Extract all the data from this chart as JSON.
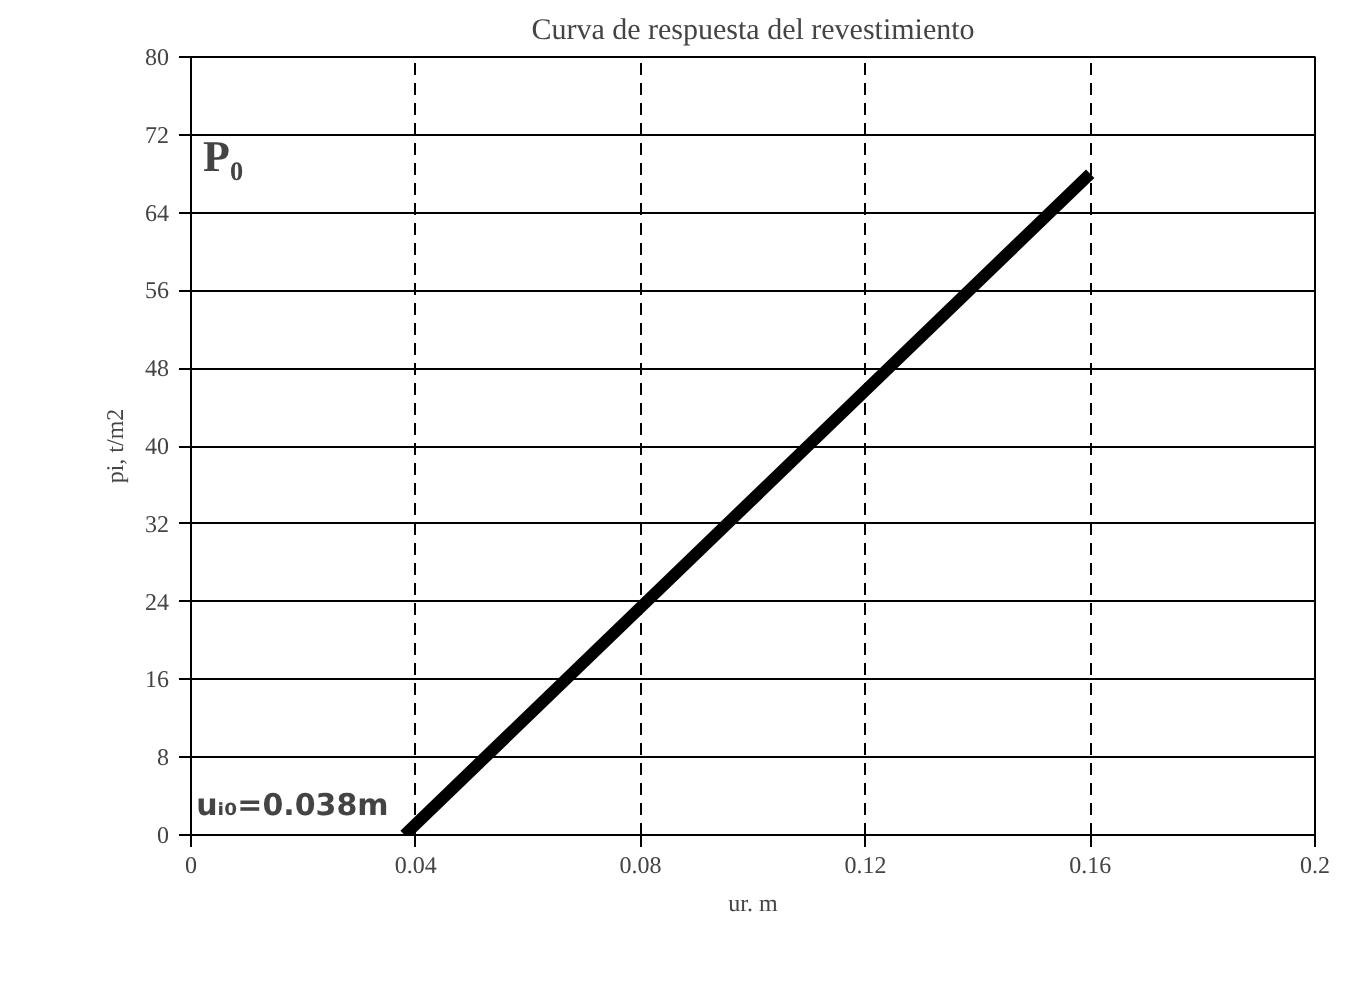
{
  "chart_data": {
    "type": "line",
    "title": "Curva de respuesta del revestimiento",
    "xlabel": "ur. m",
    "ylabel": "pi, t/m2",
    "x": [
      0.038,
      0.16
    ],
    "series": [
      {
        "color": "#000000",
        "values": [
          0,
          68
        ]
      }
    ],
    "xlim": [
      0,
      0.2
    ],
    "xticks": [
      0,
      0.04,
      0.08,
      0.12,
      0.16,
      0.2
    ],
    "ylim": [
      0,
      80
    ],
    "yticks": [
      0,
      8,
      16,
      24,
      32,
      40,
      48,
      56,
      64,
      72,
      80
    ],
    "grid": true,
    "marker": "none",
    "line_style": "solid",
    "annotations": [
      "P₀",
      {
        "text": "uᵢ₀=0.038m",
        "x": 0.038,
        "y": 0
      }
    ]
  }
}
